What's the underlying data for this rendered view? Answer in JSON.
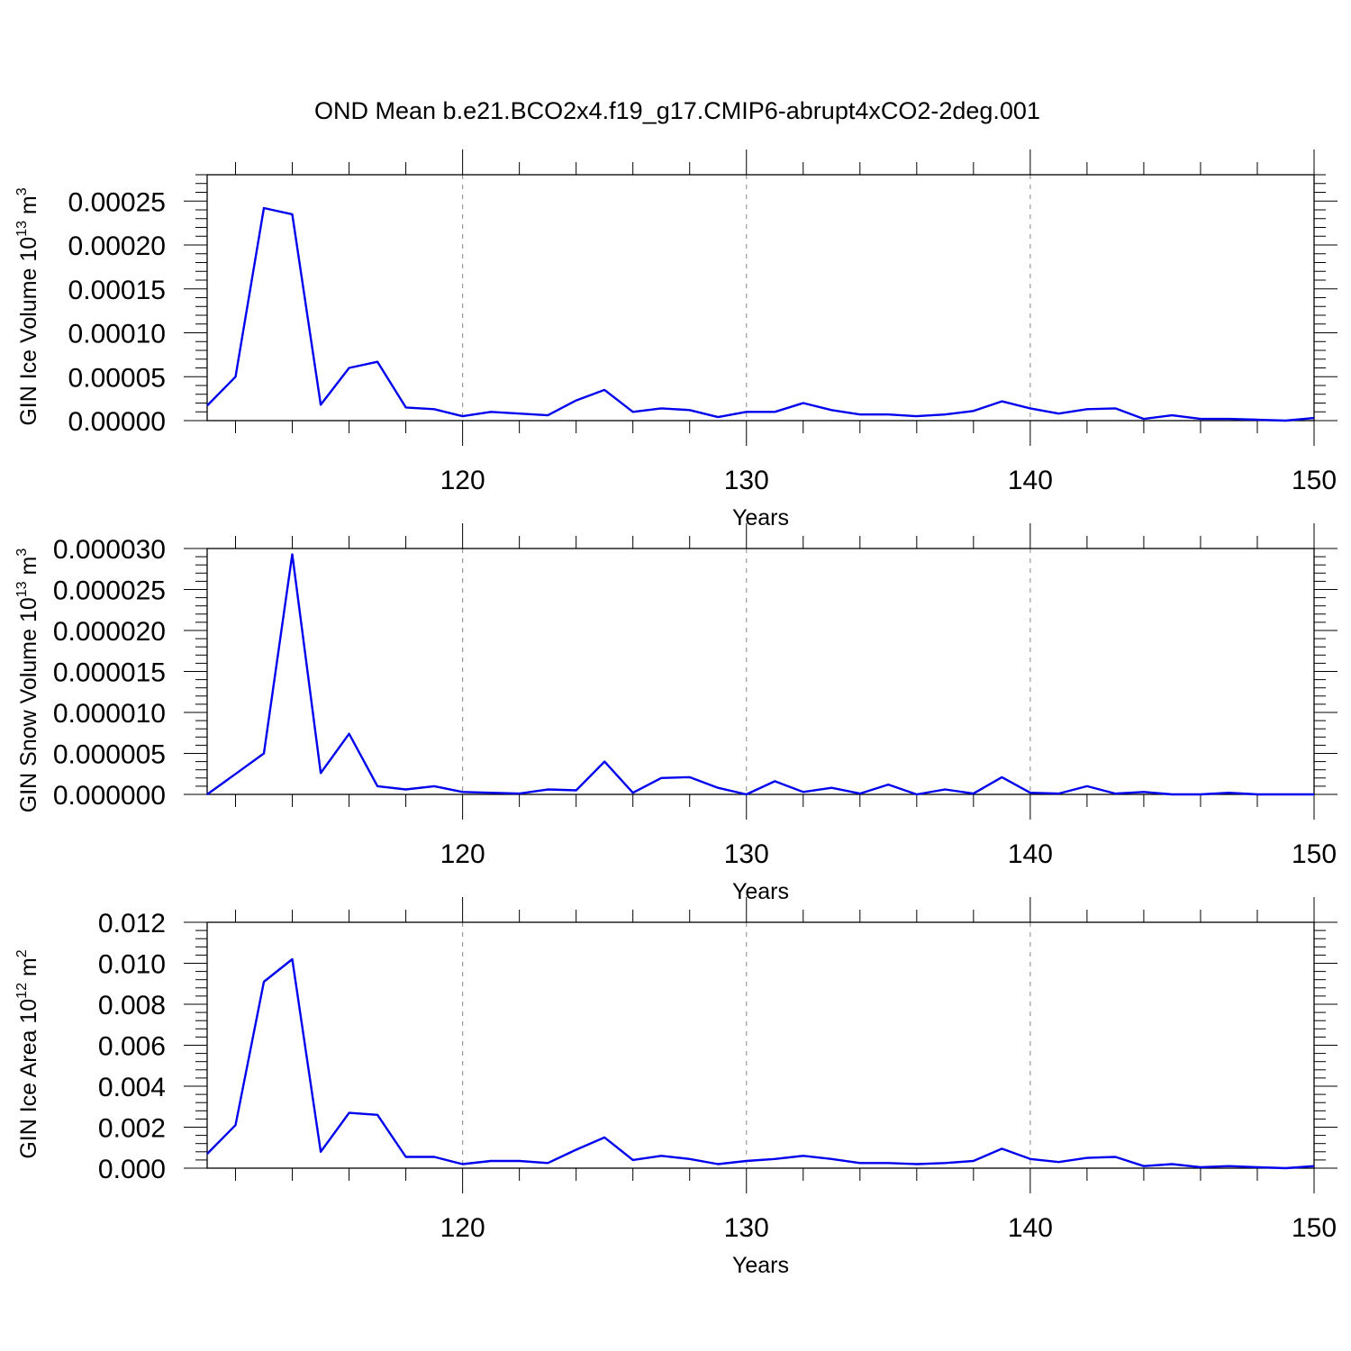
{
  "title": "OND Mean b.e21.BCO2x4.f19_g17.CMIP6-abrupt4xCO2-2deg.001",
  "chart_data": [
    {
      "type": "line",
      "title": "",
      "xlabel": "Years",
      "ylabel": "GIN Ice Volume 10",
      "ylabel_exp": "13",
      "ylabel_unit": " m",
      "ylabel_unit_exp": "3",
      "xlim": [
        111,
        150
      ],
      "ylim": [
        0,
        0.00028
      ],
      "x_ticks": [
        120,
        130,
        140,
        150
      ],
      "x_tick_labels": [
        "120",
        "130",
        "140",
        "150"
      ],
      "y_ticks": [
        0,
        5e-05,
        0.0001,
        0.00015,
        0.0002,
        0.00025
      ],
      "y_tick_labels": [
        "0.00000",
        "0.00005",
        "0.00010",
        "0.00015",
        "0.00020",
        "0.00025"
      ],
      "grid": "vertical dashed at major x ticks",
      "color": "#0000ee",
      "series": [
        {
          "x": [
            111,
            112,
            113,
            114,
            115,
            116,
            117,
            118,
            119,
            120,
            121,
            122,
            123,
            124,
            125,
            126,
            127,
            128,
            129,
            130,
            131,
            132,
            133,
            134,
            135,
            136,
            137,
            138,
            139,
            140,
            141,
            142,
            143,
            144,
            145,
            146,
            147,
            148,
            149,
            150
          ],
          "values": [
            1.7e-05,
            5e-05,
            0.000242,
            0.000235,
            1.8e-05,
            6e-05,
            6.7e-05,
            1.5e-05,
            1.3e-05,
            5e-06,
            1e-05,
            8e-06,
            6e-06,
            2.3e-05,
            3.5e-05,
            1e-05,
            1.4e-05,
            1.2e-05,
            4e-06,
            1e-05,
            1e-05,
            2e-05,
            1.2e-05,
            7e-06,
            7e-06,
            5e-06,
            7e-06,
            1.1e-05,
            2.2e-05,
            1.4e-05,
            8e-06,
            1.3e-05,
            1.4e-05,
            2e-06,
            6e-06,
            2e-06,
            2e-06,
            1e-06,
            0.0,
            3e-06
          ]
        }
      ]
    },
    {
      "type": "line",
      "title": "",
      "xlabel": "Years",
      "ylabel": "GIN Snow Volume 10",
      "ylabel_exp": "13",
      "ylabel_unit": " m",
      "ylabel_unit_exp": "3",
      "xlim": [
        111,
        150
      ],
      "ylim": [
        0,
        3e-05
      ],
      "x_ticks": [
        120,
        130,
        140,
        150
      ],
      "x_tick_labels": [
        "120",
        "130",
        "140",
        "150"
      ],
      "y_ticks": [
        0,
        5e-06,
        1e-05,
        1.5e-05,
        2e-05,
        2.5e-05,
        3e-05
      ],
      "y_tick_labels": [
        "0.000000",
        "0.000005",
        "0.000010",
        "0.000015",
        "0.000020",
        "0.000025",
        "0.000030"
      ],
      "grid": "vertical dashed at major x ticks",
      "color": "#0000ee",
      "series": [
        {
          "x": [
            111,
            112,
            113,
            114,
            115,
            116,
            117,
            118,
            119,
            120,
            121,
            122,
            123,
            124,
            125,
            126,
            127,
            128,
            129,
            130,
            131,
            132,
            133,
            134,
            135,
            136,
            137,
            138,
            139,
            140,
            141,
            142,
            143,
            144,
            145,
            146,
            147,
            148,
            149,
            150
          ],
          "values": [
            0.0,
            2.5e-06,
            5e-06,
            2.93e-05,
            2.6e-06,
            7.4e-06,
            1e-06,
            6e-07,
            1e-06,
            3e-07,
            2e-07,
            1e-07,
            6e-07,
            5e-07,
            4e-06,
            2e-07,
            2e-06,
            2.1e-06,
            8e-07,
            0.0,
            1.6e-06,
            3e-07,
            8e-07,
            1e-07,
            1.2e-06,
            0.0,
            6e-07,
            1e-07,
            2.1e-06,
            2e-07,
            1e-07,
            1e-06,
            1e-07,
            3e-07,
            0.0,
            0.0,
            2e-07,
            0.0,
            0.0,
            0.0
          ]
        }
      ]
    },
    {
      "type": "line",
      "title": "",
      "xlabel": "Years",
      "ylabel": "GIN Ice Area 10",
      "ylabel_exp": "12",
      "ylabel_unit": " m",
      "ylabel_unit_exp": "2",
      "xlim": [
        111,
        150
      ],
      "ylim": [
        0,
        0.012
      ],
      "x_ticks": [
        120,
        130,
        140,
        150
      ],
      "x_tick_labels": [
        "120",
        "130",
        "140",
        "150"
      ],
      "y_ticks": [
        0,
        0.002,
        0.004,
        0.006,
        0.008,
        0.01,
        0.012
      ],
      "y_tick_labels": [
        "0.000",
        "0.002",
        "0.004",
        "0.006",
        "0.008",
        "0.010",
        "0.012"
      ],
      "grid": "vertical dashed at major x ticks",
      "color": "#0000ee",
      "series": [
        {
          "x": [
            111,
            112,
            113,
            114,
            115,
            116,
            117,
            118,
            119,
            120,
            121,
            122,
            123,
            124,
            125,
            126,
            127,
            128,
            129,
            130,
            131,
            132,
            133,
            134,
            135,
            136,
            137,
            138,
            139,
            140,
            141,
            142,
            143,
            144,
            145,
            146,
            147,
            148,
            149,
            150
          ],
          "values": [
            0.0007,
            0.0021,
            0.0091,
            0.0102,
            0.0008,
            0.0027,
            0.0026,
            0.00055,
            0.00055,
            0.0002,
            0.00035,
            0.00035,
            0.00025,
            0.0009,
            0.0015,
            0.0004,
            0.0006,
            0.00045,
            0.0002,
            0.00035,
            0.00045,
            0.0006,
            0.00045,
            0.00025,
            0.00025,
            0.0002,
            0.00025,
            0.00035,
            0.00095,
            0.00045,
            0.0003,
            0.0005,
            0.00055,
            0.0001,
            0.0002,
            5e-05,
            0.0001,
            5e-05,
            0.0,
            0.0001
          ]
        }
      ]
    }
  ]
}
